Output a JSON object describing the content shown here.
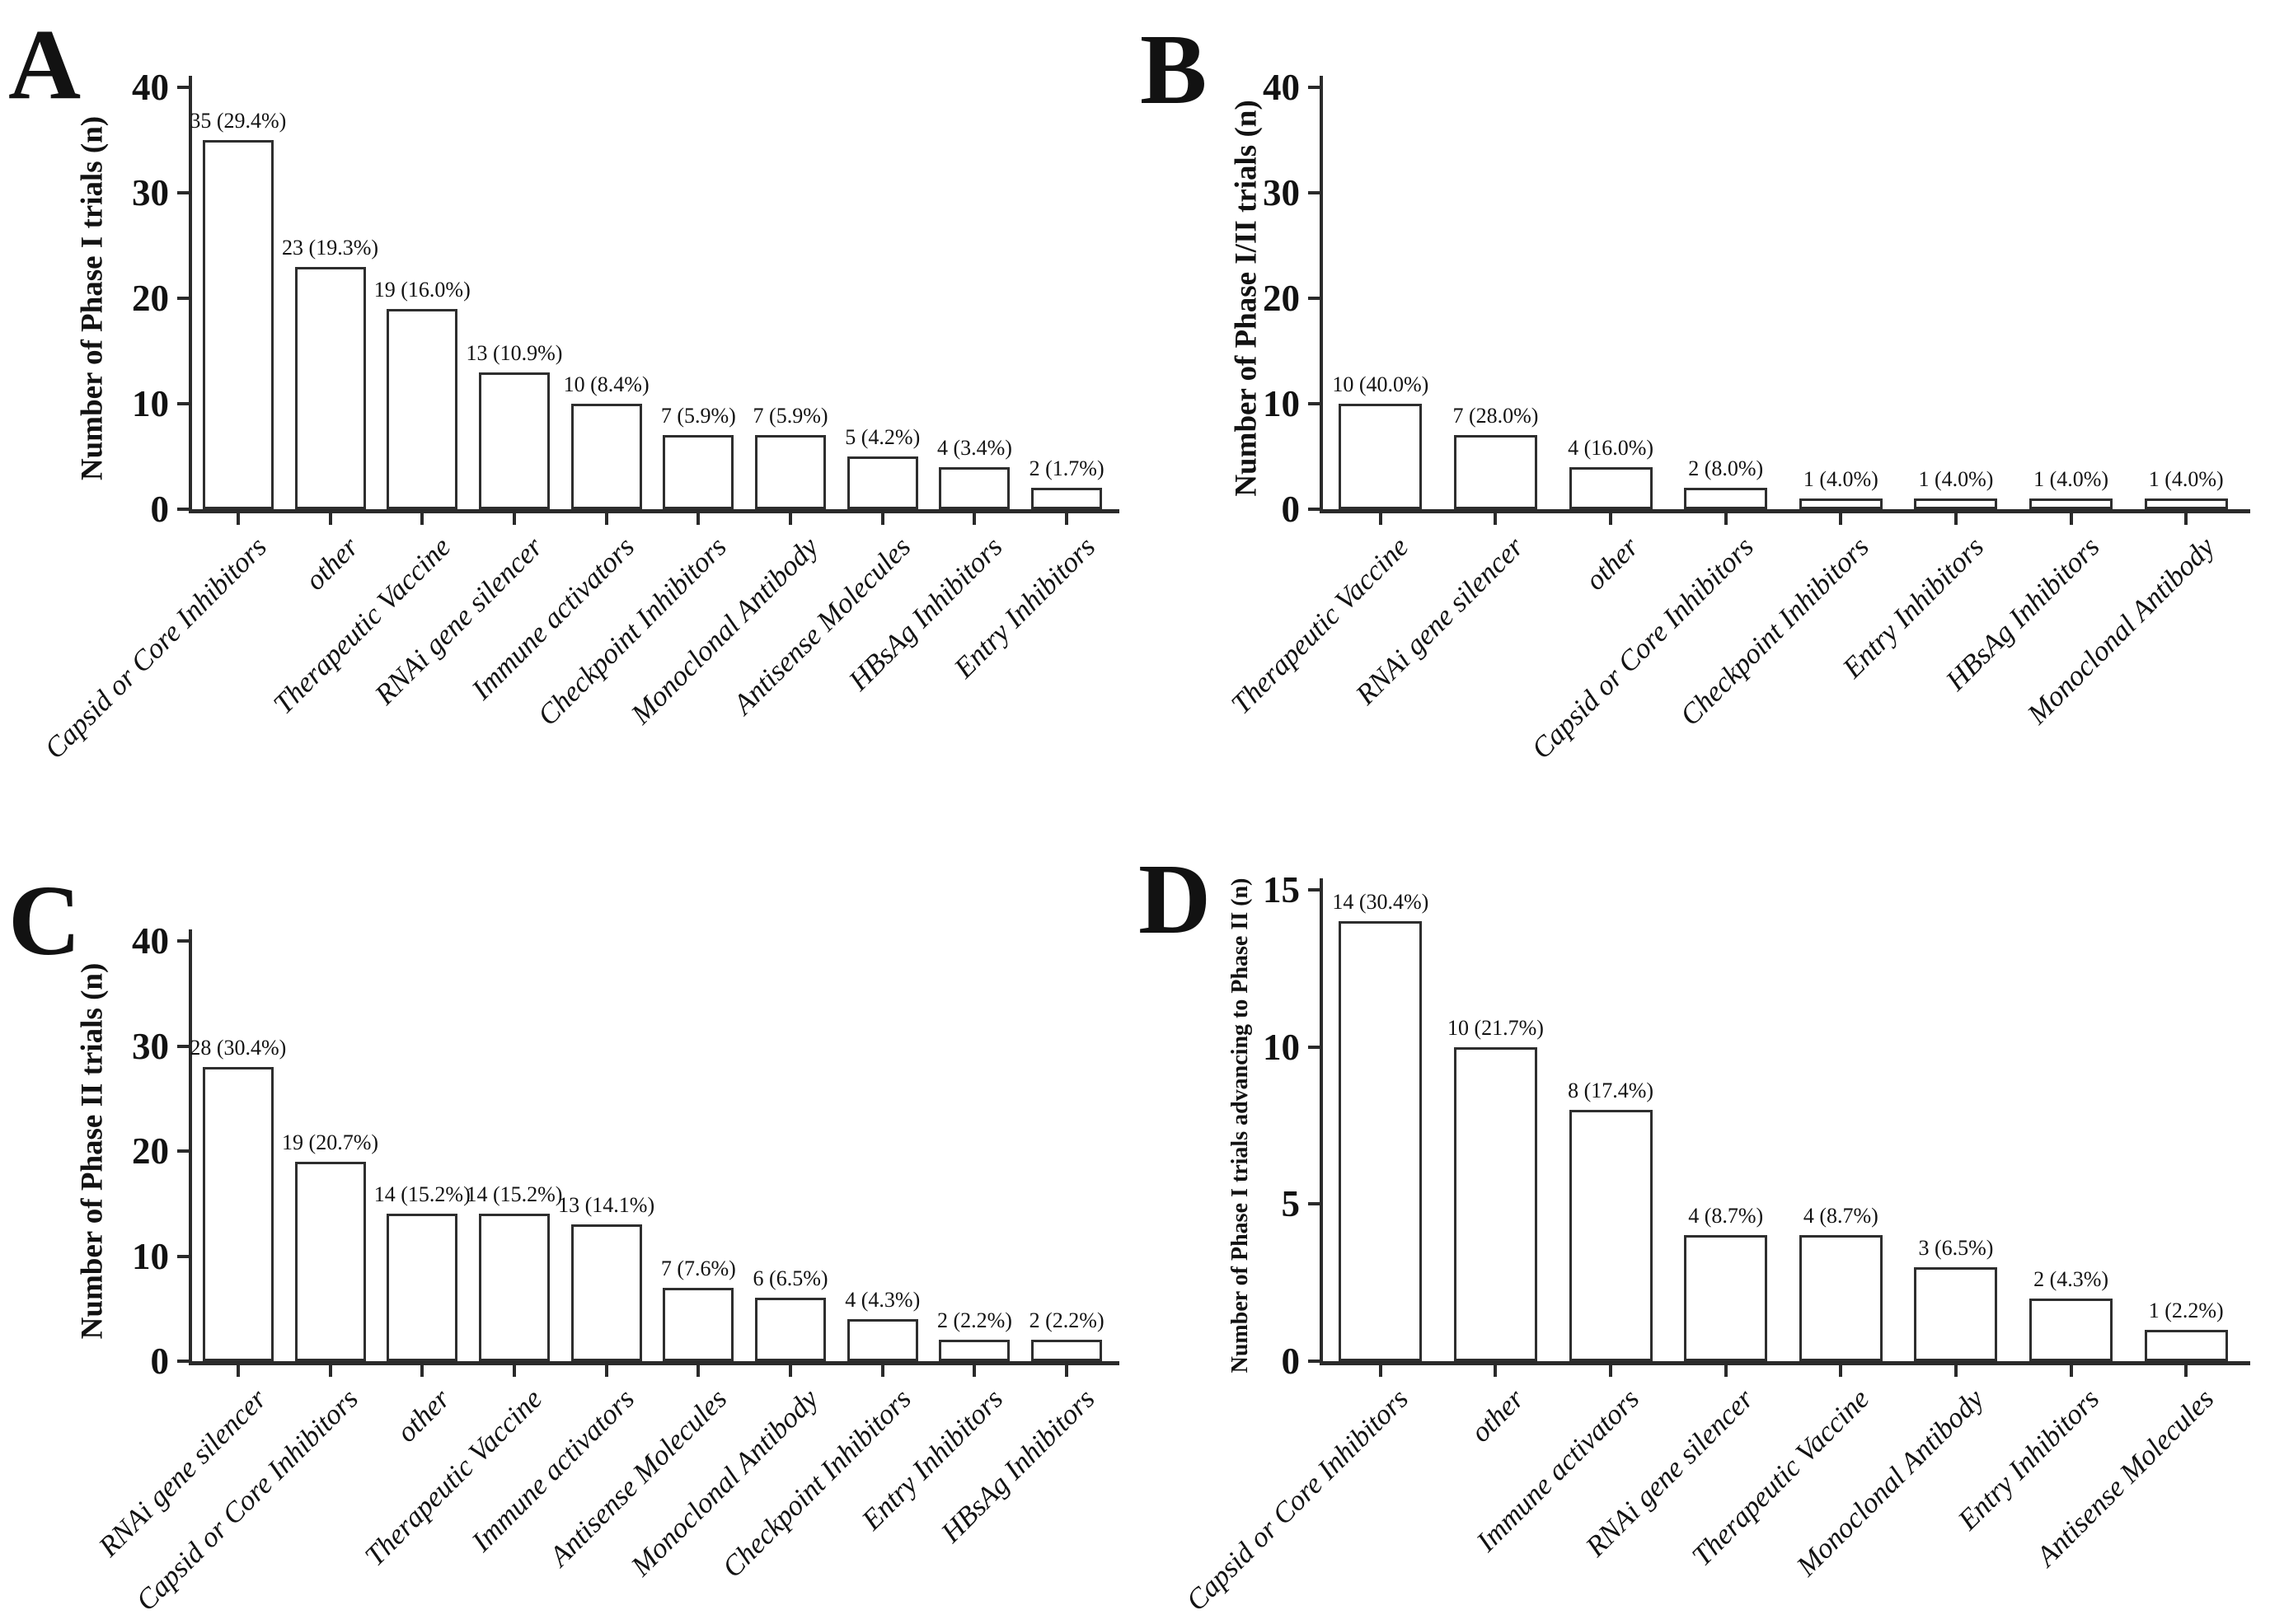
{
  "figure": {
    "panel_letters": [
      "A",
      "B",
      "C",
      "D"
    ],
    "style": {
      "background": "#ffffff",
      "bar_fill": "#ffffff",
      "bar_border": "#2e2e2e",
      "axis_color": "#2a2a2a",
      "text_color": "#121212"
    }
  },
  "chart_data": [
    {
      "panel": "A",
      "type": "bar",
      "title": "",
      "xlabel": "",
      "ylabel": "Number of Phase I trials (n)",
      "ylim": [
        0,
        40
      ],
      "yticks": [
        0,
        10,
        20,
        30,
        40
      ],
      "grid": false,
      "legend": null,
      "categories": [
        "Capsid or Core Inhibitors",
        "other",
        "Therapeutic Vaccine",
        "RNAi gene silencer",
        "Immune activators",
        "Checkpoint Inhibitors",
        "Monoclonal Antibody",
        "Antisense Molecules",
        "HBsAg Inhibitors",
        "Entry Inhibitors"
      ],
      "values": [
        35,
        23,
        19,
        13,
        10,
        7,
        7,
        5,
        4,
        2
      ],
      "bar_labels": [
        "35 (29.4%)",
        "23 (19.3%)",
        "19 (16.0%)",
        "13 (10.9%)",
        "10 (8.4%)",
        "7 (5.9%)",
        "7 (5.9%)",
        "5 (4.2%)",
        "4 (3.4%)",
        "2 (1.7%)"
      ]
    },
    {
      "panel": "B",
      "type": "bar",
      "title": "",
      "xlabel": "",
      "ylabel": "Number of Phase I/II trials (n)",
      "ylim": [
        0,
        40
      ],
      "yticks": [
        0,
        10,
        20,
        30,
        40
      ],
      "grid": false,
      "legend": null,
      "categories": [
        "Therapeutic Vaccine",
        "RNAi gene silencer",
        "other",
        "Capsid or Core Inhibitors",
        "Checkpoint Inhibitors",
        "Entry Inhibitors",
        "HBsAg Inhibitors",
        "Monoclonal Antibody"
      ],
      "values": [
        10,
        7,
        4,
        2,
        1,
        1,
        1,
        1
      ],
      "bar_labels": [
        "10 (40.0%)",
        "7 (28.0%)",
        "4 (16.0%)",
        "2 (8.0%)",
        "1 (4.0%)",
        "1 (4.0%)",
        "1 (4.0%)",
        "1 (4.0%)"
      ]
    },
    {
      "panel": "C",
      "type": "bar",
      "title": "",
      "xlabel": "",
      "ylabel": "Number of Phase II trials (n)",
      "ylim": [
        0,
        40
      ],
      "yticks": [
        0,
        10,
        20,
        30,
        40
      ],
      "grid": false,
      "legend": null,
      "categories": [
        "RNAi gene silencer",
        "Capsid or Core Inhibitors",
        "other",
        "Therapeutic Vaccine",
        "Immune activators",
        "Antisense Molecules",
        "Monoclonal Antibody",
        "Checkpoint Inhibitors",
        "Entry Inhibitors",
        "HBsAg Inhibitors"
      ],
      "values": [
        28,
        19,
        14,
        14,
        13,
        7,
        6,
        4,
        2,
        2
      ],
      "bar_labels": [
        "28 (30.4%)",
        "19 (20.7%)",
        "14 (15.2%)",
        "14 (15.2%)",
        "13 (14.1%)",
        "7 (7.6%)",
        "6 (6.5%)",
        "4 (4.3%)",
        "2 (2.2%)",
        "2 (2.2%)"
      ]
    },
    {
      "panel": "D",
      "type": "bar",
      "title": "",
      "xlabel": "",
      "ylabel": "Number of Phase I trials advancing to Phase II (n)",
      "ylim": [
        0,
        15
      ],
      "yticks": [
        0,
        5,
        10,
        15
      ],
      "grid": false,
      "legend": null,
      "categories": [
        "Capsid or Core Inhibitors",
        "other",
        "Immune activators",
        "RNAi gene silencer",
        "Therapeutic Vaccine",
        "Monoclonal Antibody",
        "Entry Inhibitors",
        "Antisense Molecules"
      ],
      "values": [
        14,
        10,
        8,
        4,
        4,
        3,
        2,
        1
      ],
      "bar_labels": [
        "14 (30.4%)",
        "10 (21.7%)",
        "8 (17.4%)",
        "4 (8.7%)",
        "4 (8.7%)",
        "3 (6.5%)",
        "2 (4.3%)",
        "1 (2.2%)"
      ]
    }
  ]
}
